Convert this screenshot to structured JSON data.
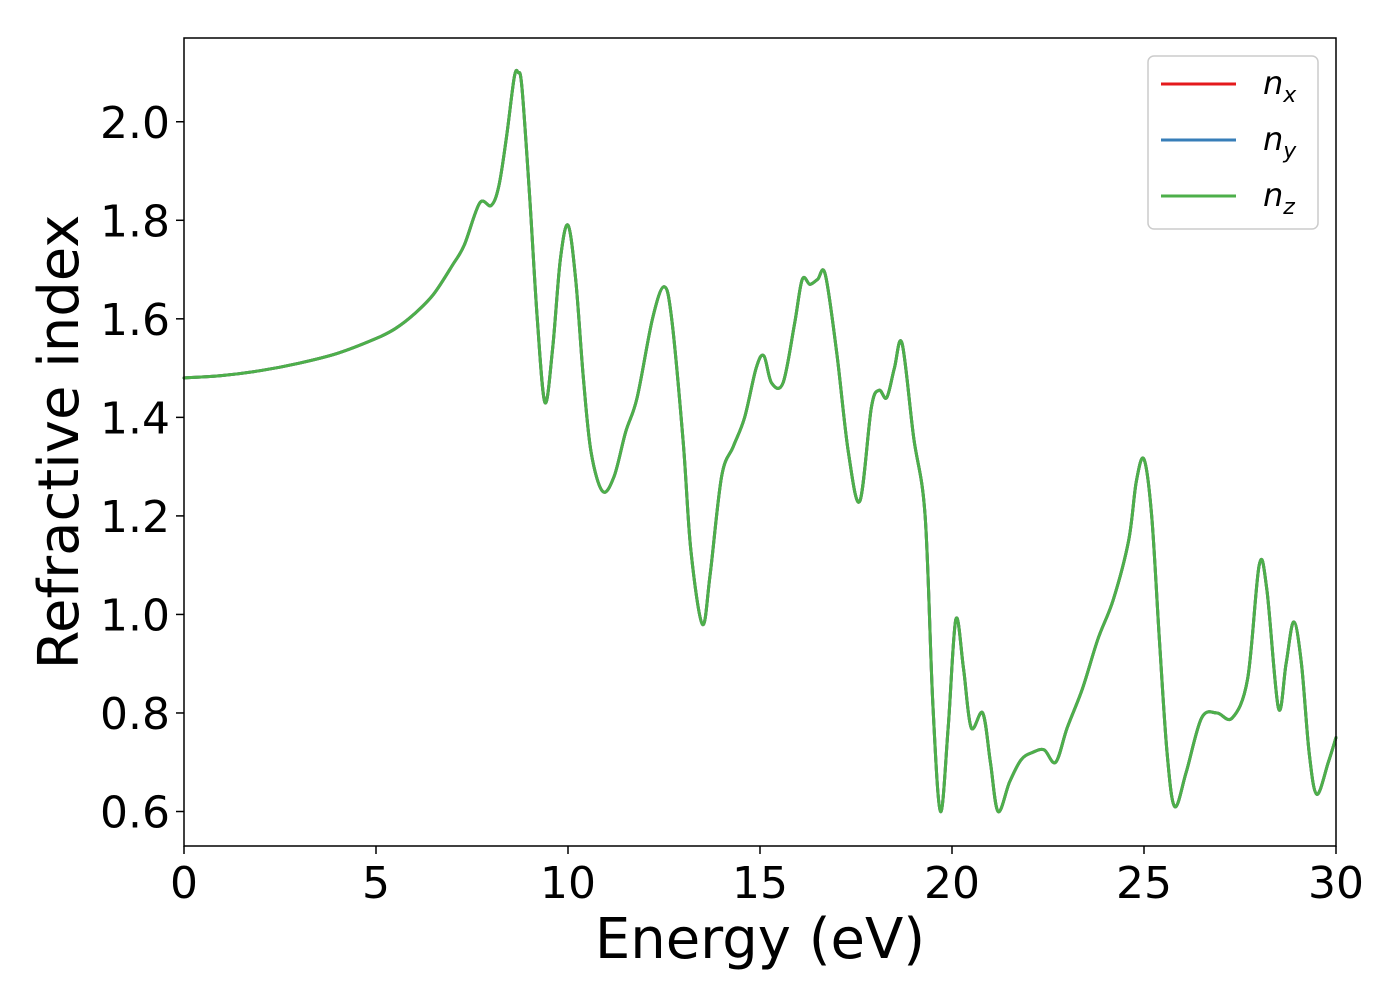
{
  "chart_data": {
    "type": "line",
    "title": "",
    "xlabel": "Energy (eV)",
    "ylabel": "Refractive index",
    "xlim": [
      0,
      30
    ],
    "ylim": [
      0.53,
      2.17
    ],
    "xticks": [
      0,
      5,
      10,
      15,
      20,
      25,
      30
    ],
    "xtick_labels": [
      "0",
      "5",
      "10",
      "15",
      "20",
      "25",
      "30"
    ],
    "yticks": [
      0.6,
      0.8,
      1.0,
      1.2,
      1.4,
      1.6,
      1.8,
      2.0
    ],
    "ytick_labels": [
      "0.6",
      "0.8",
      "1.0",
      "1.2",
      "1.4",
      "1.6",
      "1.8",
      "2.0"
    ],
    "grid": false,
    "legend_position": "top-right",
    "series": [
      {
        "name": "n",
        "subscript": "x",
        "color": "#e41a1c",
        "x": [
          0,
          1,
          2,
          3,
          4,
          5,
          5.5,
          6,
          6.5,
          7,
          7.3,
          7.7,
          8,
          8.2,
          8.4,
          8.6,
          8.7,
          8.8,
          9,
          9.2,
          9.4,
          9.6,
          9.8,
          10,
          10.2,
          10.4,
          10.6,
          10.9,
          11.2,
          11.5,
          11.8,
          12.2,
          12.5,
          12.7,
          13,
          13.2,
          13.5,
          13.7,
          14,
          14.3,
          14.6,
          14.9,
          15.1,
          15.3,
          15.6,
          15.9,
          16.1,
          16.3,
          16.5,
          16.7,
          17,
          17.3,
          17.6,
          17.9,
          18.1,
          18.3,
          18.5,
          18.7,
          19,
          19.3,
          19.5,
          19.7,
          19.9,
          20.1,
          20.3,
          20.5,
          20.8,
          21,
          21.2,
          21.5,
          21.8,
          22.1,
          22.4,
          22.7,
          23,
          23.4,
          23.8,
          24.2,
          24.6,
          24.8,
          25,
          25.2,
          25.4,
          25.6,
          25.8,
          26.1,
          26.5,
          26.9,
          27.3,
          27.7,
          28,
          28.2,
          28.5,
          28.7,
          28.9,
          29.1,
          29.3,
          29.5,
          29.8,
          30
        ],
        "y": [
          1.48,
          1.485,
          1.495,
          1.51,
          1.53,
          1.56,
          1.58,
          1.61,
          1.65,
          1.71,
          1.75,
          1.835,
          1.83,
          1.87,
          1.97,
          2.09,
          2.1,
          2.07,
          1.85,
          1.6,
          1.43,
          1.54,
          1.72,
          1.79,
          1.68,
          1.48,
          1.33,
          1.25,
          1.28,
          1.37,
          1.44,
          1.6,
          1.665,
          1.6,
          1.35,
          1.13,
          0.98,
          1.08,
          1.28,
          1.34,
          1.4,
          1.5,
          1.525,
          1.47,
          1.47,
          1.59,
          1.68,
          1.67,
          1.68,
          1.69,
          1.53,
          1.33,
          1.23,
          1.42,
          1.455,
          1.44,
          1.5,
          1.55,
          1.36,
          1.2,
          0.82,
          0.6,
          0.77,
          0.99,
          0.89,
          0.77,
          0.8,
          0.7,
          0.6,
          0.66,
          0.705,
          0.72,
          0.725,
          0.7,
          0.77,
          0.85,
          0.95,
          1.03,
          1.15,
          1.27,
          1.315,
          1.2,
          0.95,
          0.72,
          0.61,
          0.68,
          0.79,
          0.8,
          0.79,
          0.87,
          1.1,
          1.05,
          0.81,
          0.9,
          0.985,
          0.9,
          0.72,
          0.635,
          0.7,
          0.75
        ]
      },
      {
        "name": "n",
        "subscript": "y",
        "color": "#377eb8",
        "same_as": 0
      },
      {
        "name": "n",
        "subscript": "z",
        "color": "#4daf4a",
        "same_as": 0
      }
    ]
  }
}
